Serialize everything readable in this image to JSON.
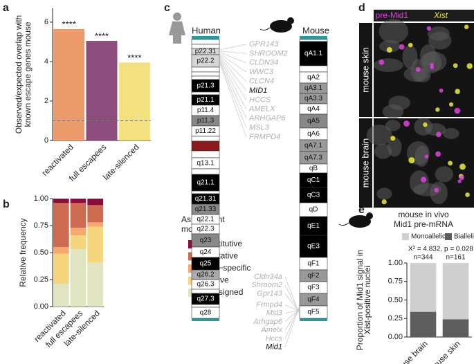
{
  "panel_labels": [
    "a",
    "b",
    "c",
    "d",
    "e"
  ],
  "chart_data": [
    {
      "type": "bar",
      "ylabel": [
        "Observed/expected overlap with",
        "known escape genes mouse"
      ],
      "categories": [
        "reactivated",
        "full escapees",
        "late-silenced"
      ],
      "values": [
        5.65,
        5.05,
        3.95
      ],
      "colors": [
        "#eb9a6b",
        "#8c4c7c",
        "#f3e07f"
      ],
      "annotations": [
        "****",
        "****",
        "****"
      ],
      "reference_line": 1,
      "ylim": [
        0,
        6.7
      ],
      "yticks": [
        0,
        2,
        4,
        6
      ]
    },
    {
      "type": "stacked_bar",
      "ylabel": "Relative frequency",
      "categories": [
        "reactivated",
        "full escapees",
        "late-silenced"
      ],
      "legend_title": [
        "Assignment",
        "mouse"
      ],
      "legend": "right",
      "series": [
        {
          "name": "unassigned",
          "color": "#e0e4c0",
          "values": [
            0.21,
            0.53,
            0.41
          ]
        },
        {
          "name": "inactive",
          "color": "#f6d57f",
          "values": [
            0.28,
            0.13,
            0.33
          ]
        },
        {
          "name": "NPC−specific",
          "color": "#f5a96f",
          "values": [
            0.06,
            0.07,
            0.04
          ]
        },
        {
          "name": "facultative",
          "color": "#cd6b52",
          "values": [
            0.41,
            0.23,
            0.16
          ]
        },
        {
          "name": "constitutive",
          "color": "#8a0b3c",
          "values": [
            0.04,
            0.04,
            0.06
          ]
        }
      ],
      "ylim": [
        0,
        1
      ],
      "yticks": [
        {
          "value": 0,
          "label": "0.00"
        },
        {
          "value": 0.25,
          "label": "0.25"
        },
        {
          "value": 0.5,
          "label": "0.50"
        },
        {
          "value": 0.75,
          "label": "0.75"
        },
        {
          "value": 1,
          "label": "1.00"
        }
      ]
    },
    {
      "type": "stacked_bar",
      "title": "mouse in vivo",
      "subtitle": "Mid1 pre-mRNA",
      "ylabel": [
        "Proportion of Mid1 signal in",
        "Xist-positive nuclei"
      ],
      "categories": [
        "mouse brain",
        "mouse skin"
      ],
      "legend": "top",
      "series": [
        {
          "name": "Biallelic",
          "color": "#5e5e5e",
          "values": [
            0.34,
            0.24
          ]
        },
        {
          "name": "Monoallelic",
          "color": "#cfcfcf",
          "values": [
            0.66,
            0.76
          ]
        }
      ],
      "annotation": "X² = 4.832, p = 0.028",
      "bar_labels": [
        "n=344",
        "n=161"
      ],
      "ylim": [
        0,
        1
      ],
      "yticks": [
        {
          "value": 0,
          "label": "0.00"
        },
        {
          "value": 0.25,
          "label": "0.25"
        },
        {
          "value": 0.5,
          "label": "0.50"
        },
        {
          "value": 0.75,
          "label": "0.75"
        },
        {
          "value": 1,
          "label": "1.00"
        }
      ]
    }
  ],
  "ideogram": {
    "human": {
      "title": "Human",
      "bands": [
        "p22.31",
        "p22.2",
        "p21.3",
        "p21.1",
        "p11.4",
        "p11.3",
        "p11.22",
        "q13.1",
        "q21.1",
        "q21.31",
        "q21.33",
        "q22.1",
        "q22.3",
        "q23",
        "q24",
        "q25",
        "q26.2",
        "q26.3",
        "q27.3",
        "q28"
      ]
    },
    "mouse": {
      "title": "Mouse",
      "bands": [
        "qA1.1",
        "qA2",
        "qA3.1",
        "qA3.3",
        "qA4",
        "qA5",
        "qA6",
        "qA7.1",
        "qA7.3",
        "qB",
        "qC1",
        "qC3",
        "qD",
        "qE1",
        "qE3",
        "qF1",
        "qF2",
        "qF3",
        "qF4",
        "qF5"
      ]
    },
    "human_genes": [
      {
        "label": "GPR143"
      },
      {
        "label": "SHROOM2"
      },
      {
        "label": "CLDN34"
      },
      {
        "label": "WWC3"
      },
      {
        "label": "CLCN4"
      },
      {
        "label": "MID1",
        "highlighted": true
      },
      {
        "label": "HCCS"
      },
      {
        "label": "AMELX"
      },
      {
        "label": "ARHGAP6"
      },
      {
        "label": "MSL3"
      },
      {
        "label": "FRMPD4"
      }
    ],
    "mouse_genes": [
      {
        "label": "Cldn34a"
      },
      {
        "label": "Shroom2"
      },
      {
        "label": "Gpr143"
      },
      {
        "label": "Frmpd4"
      },
      {
        "label": "Msl3"
      },
      {
        "label": "Arhgap6"
      },
      {
        "label": "Amelx"
      },
      {
        "label": "Hccs"
      },
      {
        "label": "Mid1",
        "highlighted": true
      }
    ]
  },
  "micrographs": {
    "channels": [
      {
        "label": "pre-Mid1",
        "color": "#e03fe0"
      },
      {
        "label": "Xist",
        "color": "#ecec3a"
      }
    ],
    "samples": [
      "mouse skin",
      "mouse brain"
    ]
  }
}
